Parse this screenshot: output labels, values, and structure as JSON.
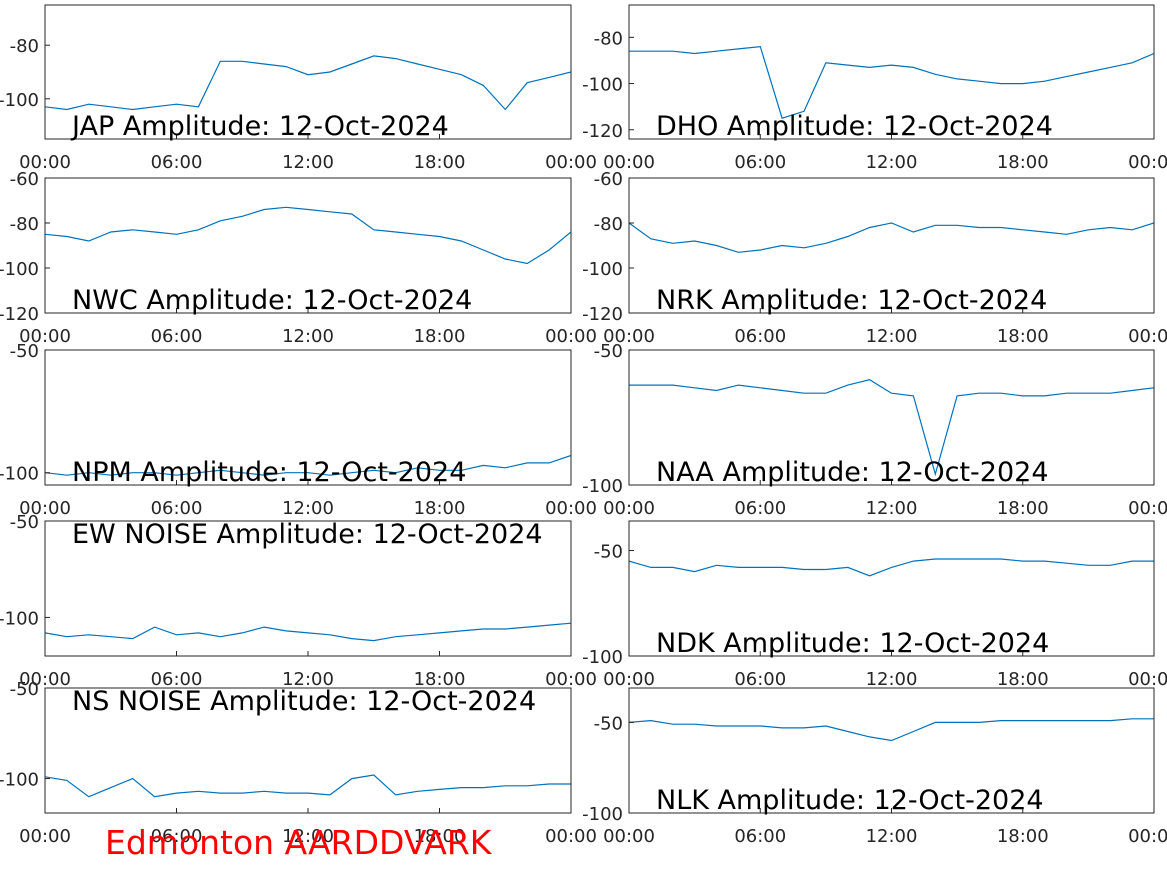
{
  "chart_data": [
    {
      "type": "line",
      "title": "JAP Amplitude: 12-Oct-2024",
      "color": "#0072bd",
      "x": [
        0,
        1,
        2,
        3,
        4,
        5,
        6,
        7,
        8,
        9,
        10,
        11,
        12,
        13,
        14,
        15,
        16,
        17,
        18,
        19,
        20,
        21,
        22,
        23,
        24
      ],
      "values": [
        -103,
        -104,
        -102,
        -103,
        -104,
        -103,
        -102,
        -103,
        -86,
        -86,
        -87,
        -88,
        -91,
        -90,
        -87,
        -84,
        -85,
        -87,
        -89,
        -91,
        -95,
        -104,
        -94,
        -92,
        -90
      ],
      "xlim": [
        0,
        24
      ],
      "xticks": [
        {
          "value": 0,
          "label": "00:00"
        },
        {
          "value": 6,
          "label": "06:00"
        },
        {
          "value": 12,
          "label": "12:00"
        },
        {
          "value": 18,
          "label": "18:00"
        },
        {
          "value": 24,
          "label": "00:00"
        }
      ],
      "ylim": [
        -115,
        -65
      ],
      "yticks": [
        -100,
        -80
      ]
    },
    {
      "type": "line",
      "title": "DHO Amplitude: 12-Oct-2024",
      "color": "#0072bd",
      "x": [
        0,
        1,
        2,
        3,
        4,
        5,
        6,
        7,
        8,
        9,
        10,
        11,
        12,
        13,
        14,
        15,
        16,
        17,
        18,
        19,
        20,
        21,
        22,
        23,
        24
      ],
      "values": [
        -86,
        -86,
        -86,
        -87,
        -86,
        -85,
        -84,
        -115,
        -112,
        -91,
        -92,
        -93,
        -92,
        -93,
        -96,
        -98,
        -99,
        -100,
        -100,
        -99,
        -97,
        -95,
        -93,
        -91,
        -87
      ],
      "xlim": [
        0,
        24
      ],
      "xticks": [
        {
          "value": 0,
          "label": "00:00"
        },
        {
          "value": 6,
          "label": "06:00"
        },
        {
          "value": 12,
          "label": "12:00"
        },
        {
          "value": 18,
          "label": "18:00"
        },
        {
          "value": 24,
          "label": "00:00"
        }
      ],
      "ylim": [
        -124,
        -66
      ],
      "yticks": [
        -120,
        -100,
        -80
      ]
    },
    {
      "type": "line",
      "title": "NWC Amplitude: 12-Oct-2024",
      "color": "#0072bd",
      "x": [
        0,
        1,
        2,
        3,
        4,
        5,
        6,
        7,
        8,
        9,
        10,
        11,
        12,
        13,
        14,
        15,
        16,
        17,
        18,
        19,
        20,
        21,
        22,
        23,
        24
      ],
      "values": [
        -85,
        -86,
        -88,
        -84,
        -83,
        -84,
        -85,
        -83,
        -79,
        -77,
        -74,
        -73,
        -74,
        -75,
        -76,
        -83,
        -84,
        -85,
        -86,
        -88,
        -92,
        -96,
        -98,
        -92,
        -84
      ],
      "xlim": [
        0,
        24
      ],
      "xticks": [
        {
          "value": 0,
          "label": "00:00"
        },
        {
          "value": 6,
          "label": "06:00"
        },
        {
          "value": 12,
          "label": "12:00"
        },
        {
          "value": 18,
          "label": "18:00"
        },
        {
          "value": 24,
          "label": "00:00"
        }
      ],
      "ylim": [
        -120,
        -60
      ],
      "yticks": [
        -120,
        -100,
        -80,
        -60
      ]
    },
    {
      "type": "line",
      "title": "NRK Amplitude: 12-Oct-2024",
      "color": "#0072bd",
      "x": [
        0,
        1,
        2,
        3,
        4,
        5,
        6,
        7,
        8,
        9,
        10,
        11,
        12,
        13,
        14,
        15,
        16,
        17,
        18,
        19,
        20,
        21,
        22,
        23,
        24
      ],
      "values": [
        -80,
        -87,
        -89,
        -88,
        -90,
        -93,
        -92,
        -90,
        -91,
        -89,
        -86,
        -82,
        -80,
        -84,
        -81,
        -81,
        -82,
        -82,
        -83,
        -84,
        -85,
        -83,
        -82,
        -83,
        -80
      ],
      "xlim": [
        0,
        24
      ],
      "xticks": [
        {
          "value": 0,
          "label": "00:00"
        },
        {
          "value": 6,
          "label": "06:00"
        },
        {
          "value": 12,
          "label": "12:00"
        },
        {
          "value": 18,
          "label": "18:00"
        },
        {
          "value": 24,
          "label": "00:00"
        }
      ],
      "ylim": [
        -120,
        -60
      ],
      "yticks": [
        -120,
        -100,
        -80,
        -60
      ]
    },
    {
      "type": "line",
      "title": "NPM Amplitude: 12-Oct-2024",
      "color": "#0072bd",
      "x": [
        0,
        1,
        2,
        3,
        4,
        5,
        6,
        7,
        8,
        9,
        10,
        11,
        12,
        13,
        14,
        15,
        16,
        17,
        18,
        19,
        20,
        21,
        22,
        23,
        24
      ],
      "values": [
        -100,
        -101,
        -100,
        -101,
        -100,
        -100,
        -101,
        -100,
        -99,
        -100,
        -101,
        -100,
        -100,
        -101,
        -100,
        -99,
        -100,
        -98,
        -99,
        -99,
        -97,
        -98,
        -96,
        -96,
        -93
      ],
      "xlim": [
        0,
        24
      ],
      "xticks": [
        {
          "value": 0,
          "label": "00:00"
        },
        {
          "value": 6,
          "label": "06:00"
        },
        {
          "value": 12,
          "label": "12:00"
        },
        {
          "value": 18,
          "label": "18:00"
        },
        {
          "value": 24,
          "label": "00:00"
        }
      ],
      "ylim": [
        -105,
        -50
      ],
      "yticks": [
        -100,
        -50
      ]
    },
    {
      "type": "line",
      "title": "NAA Amplitude: 12-Oct-2024",
      "color": "#0072bd",
      "x": [
        0,
        1,
        2,
        3,
        4,
        5,
        6,
        7,
        8,
        9,
        10,
        11,
        12,
        13,
        14,
        15,
        16,
        17,
        18,
        19,
        20,
        21,
        22,
        23,
        24
      ],
      "values": [
        -63,
        -63,
        -63,
        -64,
        -65,
        -63,
        -64,
        -65,
        -66,
        -66,
        -63,
        -61,
        -66,
        -67,
        -96,
        -67,
        -66,
        -66,
        -67,
        -67,
        -66,
        -66,
        -66,
        -65,
        -64
      ],
      "xlim": [
        0,
        24
      ],
      "xticks": [
        {
          "value": 0,
          "label": "00:00"
        },
        {
          "value": 6,
          "label": "06:00"
        },
        {
          "value": 12,
          "label": "12:00"
        },
        {
          "value": 18,
          "label": "18:00"
        },
        {
          "value": 24,
          "label": "00:00"
        }
      ],
      "ylim": [
        -100,
        -50
      ],
      "yticks": [
        -100,
        -50
      ]
    },
    {
      "type": "line",
      "title": "EW NOISE Amplitude: 12-Oct-2024",
      "color": "#0072bd",
      "x": [
        0,
        1,
        2,
        3,
        4,
        5,
        6,
        7,
        8,
        9,
        10,
        11,
        12,
        13,
        14,
        15,
        16,
        17,
        18,
        19,
        20,
        21,
        22,
        23,
        24
      ],
      "values": [
        -108,
        -110,
        -109,
        -110,
        -111,
        -105,
        -109,
        -108,
        -110,
        -108,
        -105,
        -107,
        -108,
        -109,
        -111,
        -112,
        -110,
        -109,
        -108,
        -107,
        -106,
        -106,
        -105,
        -104,
        -103
      ],
      "xlim": [
        0,
        24
      ],
      "xticks": [
        {
          "value": 0,
          "label": "00:00"
        },
        {
          "value": 6,
          "label": "06:00"
        },
        {
          "value": 12,
          "label": "12:00"
        },
        {
          "value": 18,
          "label": "18:00"
        },
        {
          "value": 24,
          "label": "00:00"
        }
      ],
      "ylim": [
        -120,
        -50
      ],
      "yticks": [
        -100,
        -50
      ]
    },
    {
      "type": "line",
      "title": "NDK Amplitude: 12-Oct-2024",
      "color": "#0072bd",
      "x": [
        0,
        1,
        2,
        3,
        4,
        5,
        6,
        7,
        8,
        9,
        10,
        11,
        12,
        13,
        14,
        15,
        16,
        17,
        18,
        19,
        20,
        21,
        22,
        23,
        24
      ],
      "values": [
        -55,
        -58,
        -58,
        -60,
        -57,
        -58,
        -58,
        -58,
        -59,
        -59,
        -58,
        -62,
        -58,
        -55,
        -54,
        -54,
        -54,
        -54,
        -55,
        -55,
        -56,
        -57,
        -57,
        -55,
        -55
      ],
      "xlim": [
        0,
        24
      ],
      "xticks": [
        {
          "value": 0,
          "label": "00:00"
        },
        {
          "value": 6,
          "label": "06:00"
        },
        {
          "value": 12,
          "label": "12:00"
        },
        {
          "value": 18,
          "label": "18:00"
        },
        {
          "value": 24,
          "label": "00:00"
        }
      ],
      "ylim": [
        -100,
        -36
      ],
      "yticks": [
        -100,
        -50
      ]
    },
    {
      "type": "line",
      "title": "NS NOISE Amplitude: 12-Oct-2024",
      "color": "#0072bd",
      "x": [
        0,
        1,
        2,
        3,
        4,
        5,
        6,
        7,
        8,
        9,
        10,
        11,
        12,
        13,
        14,
        15,
        16,
        17,
        18,
        19,
        20,
        21,
        22,
        23,
        24
      ],
      "values": [
        -99,
        -101,
        -110,
        -105,
        -100,
        -110,
        -108,
        -107,
        -108,
        -108,
        -107,
        -108,
        -108,
        -109,
        -100,
        -98,
        -109,
        -107,
        -106,
        -105,
        -105,
        -104,
        -104,
        -103,
        -103
      ],
      "xlim": [
        0,
        24
      ],
      "xticks": [
        {
          "value": 0,
          "label": "00:00"
        },
        {
          "value": 6,
          "label": "06:00"
        },
        {
          "value": 12,
          "label": "12:00"
        },
        {
          "value": 18,
          "label": "18:00"
        },
        {
          "value": 24,
          "label": "00:00"
        }
      ],
      "ylim": [
        -119,
        -50
      ],
      "yticks": [
        -100,
        -50
      ]
    },
    {
      "type": "line",
      "title": "NLK Amplitude: 12-Oct-2024",
      "color": "#0072bd",
      "x": [
        0,
        1,
        2,
        3,
        4,
        5,
        6,
        7,
        8,
        9,
        10,
        11,
        12,
        13,
        14,
        15,
        16,
        17,
        18,
        19,
        20,
        21,
        22,
        23,
        24
      ],
      "values": [
        -50,
        -49,
        -51,
        -51,
        -52,
        -52,
        -52,
        -53,
        -53,
        -52,
        -55,
        -58,
        -60,
        -55,
        -50,
        -50,
        -50,
        -49,
        -49,
        -49,
        -49,
        -49,
        -49,
        -48,
        -48
      ],
      "xlim": [
        0,
        24
      ],
      "xticks": [
        {
          "value": 0,
          "label": "00:00"
        },
        {
          "value": 6,
          "label": "06:00"
        },
        {
          "value": 12,
          "label": "12:00"
        },
        {
          "value": 18,
          "label": "18:00"
        },
        {
          "value": 24,
          "label": "00:00"
        }
      ],
      "ylim": [
        -100,
        -31
      ],
      "yticks": [
        -100,
        -50
      ]
    }
  ],
  "caption": "Edmonton AARDDVARK"
}
